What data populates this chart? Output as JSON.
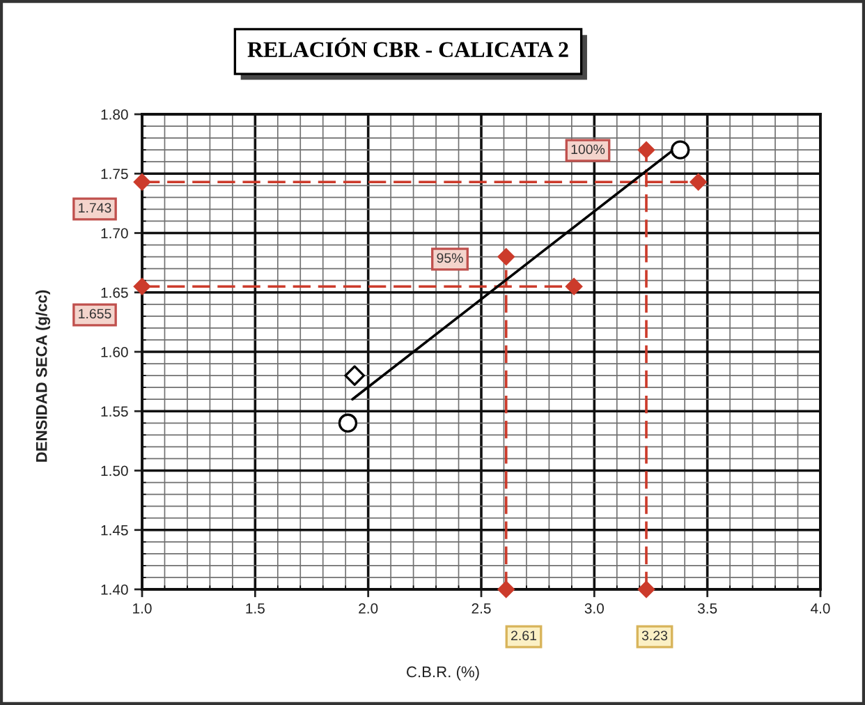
{
  "chart_data": {
    "type": "scatter",
    "title": "RELACIÓN CBR - CALICATA 2",
    "xlabel": "C.B.R. (%)",
    "ylabel": "DENSIDAD SECA (g/cc)",
    "xlim": [
      1,
      4
    ],
    "ylim": [
      1.4,
      1.8
    ],
    "xticks": [
      {
        "value": 1,
        "label": "1.0"
      },
      {
        "value": 1.1,
        "label": null
      },
      {
        "value": 1.2,
        "label": null
      },
      {
        "value": 1.3,
        "label": null
      },
      {
        "value": 1.4,
        "label": null
      },
      1.5,
      {
        "value": 1.6,
        "label": null
      },
      {
        "value": 1.7,
        "label": null
      },
      {
        "value": 1.8,
        "label": null
      },
      {
        "value": 1.9,
        "label": null
      },
      {
        "value": 2,
        "label": "2.0"
      },
      {
        "value": 2.1,
        "label": null
      },
      {
        "value": 2.2,
        "label": null
      },
      {
        "value": 2.3,
        "label": null
      },
      {
        "value": 2.4,
        "label": null
      },
      2.5,
      {
        "value": 2.6,
        "label": null
      },
      {
        "value": 2.7,
        "label": null
      },
      {
        "value": 2.8,
        "label": null
      },
      {
        "value": 2.9,
        "label": null
      },
      {
        "value": 3,
        "label": "3.0"
      },
      {
        "value": 3.1,
        "label": null
      },
      {
        "value": 3.2,
        "label": null
      },
      {
        "value": 3.3,
        "label": null
      },
      {
        "value": 3.4,
        "label": null
      },
      3.5,
      {
        "value": 3.6,
        "label": null
      },
      {
        "value": 3.7,
        "label": null
      },
      {
        "value": 3.8,
        "label": null
      },
      {
        "value": 3.9,
        "label": null
      },
      {
        "value": 4,
        "label": "4.0"
      }
    ],
    "yticks": [
      {
        "value": 1.4,
        "label": "1.40"
      },
      {
        "value": 1.41,
        "label": null
      },
      {
        "value": 1.42,
        "label": null
      },
      {
        "value": 1.43,
        "label": null
      },
      {
        "value": 1.44,
        "label": null
      },
      1.45,
      {
        "value": 1.46,
        "label": null
      },
      {
        "value": 1.47,
        "label": null
      },
      {
        "value": 1.48,
        "label": null
      },
      {
        "value": 1.49,
        "label": null
      },
      {
        "value": 1.5,
        "label": "1.50"
      },
      {
        "value": 1.51,
        "label": null
      },
      {
        "value": 1.52,
        "label": null
      },
      {
        "value": 1.53,
        "label": null
      },
      {
        "value": 1.54,
        "label": null
      },
      1.55,
      {
        "value": 1.56,
        "label": null
      },
      {
        "value": 1.57,
        "label": null
      },
      {
        "value": 1.58,
        "label": null
      },
      {
        "value": 1.59,
        "label": null
      },
      {
        "value": 1.6,
        "label": "1.60"
      },
      {
        "value": 1.61,
        "label": null
      },
      {
        "value": 1.62,
        "label": null
      },
      {
        "value": 1.63,
        "label": null
      },
      {
        "value": 1.64,
        "label": null
      },
      1.65,
      {
        "value": 1.66,
        "label": null
      },
      {
        "value": 1.67,
        "label": null
      },
      {
        "value": 1.68,
        "label": null
      },
      {
        "value": 1.69,
        "label": null
      },
      {
        "value": 1.7,
        "label": "1.70"
      },
      {
        "value": 1.71,
        "label": null
      },
      {
        "value": 1.72,
        "label": null
      },
      {
        "value": 1.73,
        "label": null
      },
      {
        "value": 1.74,
        "label": null
      },
      1.75,
      {
        "value": 1.76,
        "label": null
      },
      {
        "value": 1.77,
        "label": null
      },
      {
        "value": 1.78,
        "label": null
      },
      {
        "value": 1.79,
        "label": null
      },
      {
        "value": 1.8,
        "label": "1.80"
      }
    ],
    "grid": true,
    "series": [
      {
        "type": "line",
        "color": "#cc3b2b",
        "x": [
          1,
          2.91
        ],
        "values": [
          1.655,
          1.655
        ],
        "marker": "diamond",
        "line_style": "dashed"
      },
      {
        "type": "line",
        "color": "#cc3b2b",
        "x": [
          2.61,
          2.61
        ],
        "values": [
          1.4,
          1.68
        ],
        "marker": "diamond",
        "line_style": "dashed"
      },
      {
        "type": "line",
        "color": "#cc3b2b",
        "x": [
          1,
          3.46
        ],
        "values": [
          1.743,
          1.743
        ],
        "marker": "diamond",
        "line_style": "dashed"
      },
      {
        "type": "line",
        "color": "#cc3b2b",
        "x": [
          3.23,
          3.23
        ],
        "values": [
          1.4,
          1.77
        ],
        "marker": "diamond",
        "line_style": "dashed"
      },
      {
        "type": "line",
        "color": "#000000",
        "x": [
          1.93,
          3.35
        ],
        "values": [
          1.56,
          1.77
        ],
        "marker": "none",
        "line_style": "solid"
      },
      {
        "color": "#000000",
        "x": [
          1.91,
          3.38
        ],
        "values": [
          1.54,
          1.77
        ],
        "marker": "circle"
      },
      {
        "color": "#000000",
        "x": [
          1.94
        ],
        "values": [
          1.58
        ],
        "marker": "diamond"
      }
    ],
    "annotations": [
      "1.743",
      "1.655",
      "2.61",
      "3.23",
      "95%",
      "100%"
    ]
  }
}
